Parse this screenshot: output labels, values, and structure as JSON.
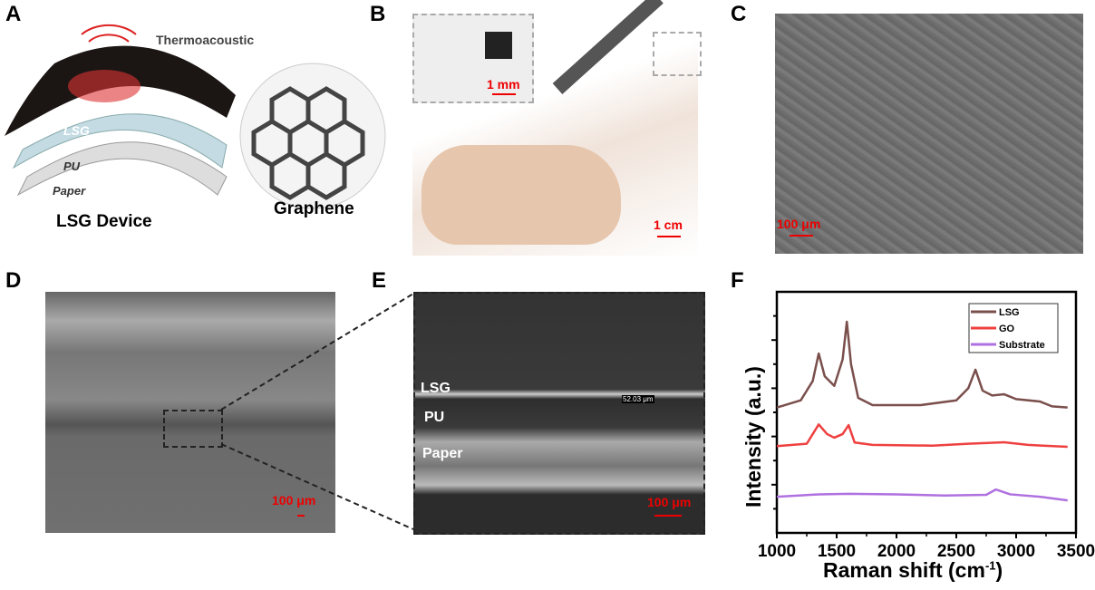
{
  "panels": {
    "A": {
      "label": "A",
      "title": "Thermoacoustic",
      "layers": [
        "LSG",
        "PU",
        "Paper"
      ],
      "device_caption": "LSG Device",
      "graphene_caption": "Graphene"
    },
    "B": {
      "label": "B",
      "inset_scale": "1 mm",
      "scale": "1 cm"
    },
    "C": {
      "label": "C",
      "scale": "100 μm"
    },
    "D": {
      "label": "D",
      "scale": "100 μm"
    },
    "E": {
      "label": "E",
      "layers": [
        "LSG",
        "PU",
        "Paper"
      ],
      "measurement": "52.03 μm",
      "scale": "100 μm"
    },
    "F": {
      "label": "F"
    }
  },
  "colors": {
    "scale_bar": "#e00000",
    "LSG": "#7a4f4c",
    "GO": "#ef4040",
    "Substrate": "#b071e0"
  },
  "chart_data": {
    "type": "line",
    "xlabel": "Raman shift (cm-1)",
    "xlabel_main": "Raman shift (cm",
    "xlabel_sup": "-1",
    "xlabel_end": ")",
    "ylabel": "Intensity (a.u.)",
    "xlim": [
      1000,
      3500
    ],
    "ylim": [
      0,
      10
    ],
    "xticks": [
      "1000",
      "1500",
      "2000",
      "2500",
      "3000",
      "3500"
    ],
    "grid": false,
    "legend": "top-right",
    "series": [
      {
        "name": "LSG",
        "points": [
          [
            1000,
            5.2
          ],
          [
            1200,
            5.5
          ],
          [
            1300,
            6.3
          ],
          [
            1350,
            7.44
          ],
          [
            1400,
            6.5
          ],
          [
            1480,
            6.1
          ],
          [
            1550,
            7.2
          ],
          [
            1585,
            8.76
          ],
          [
            1620,
            7.0
          ],
          [
            1680,
            5.6
          ],
          [
            1800,
            5.3
          ],
          [
            2200,
            5.3
          ],
          [
            2500,
            5.5
          ],
          [
            2600,
            6.0
          ],
          [
            2660,
            6.77
          ],
          [
            2720,
            5.9
          ],
          [
            2800,
            5.7
          ],
          [
            2900,
            5.75
          ],
          [
            3000,
            5.55
          ],
          [
            3200,
            5.45
          ],
          [
            3300,
            5.25
          ],
          [
            3430,
            5.2
          ]
        ]
      },
      {
        "name": "GO",
        "points": [
          [
            1000,
            3.6
          ],
          [
            1250,
            3.7
          ],
          [
            1350,
            4.5
          ],
          [
            1420,
            4.1
          ],
          [
            1480,
            3.95
          ],
          [
            1550,
            4.1
          ],
          [
            1600,
            4.47
          ],
          [
            1650,
            3.75
          ],
          [
            1800,
            3.65
          ],
          [
            2300,
            3.62
          ],
          [
            2600,
            3.7
          ],
          [
            2900,
            3.76
          ],
          [
            3100,
            3.65
          ],
          [
            3430,
            3.57
          ]
        ]
      },
      {
        "name": "Substrate",
        "points": [
          [
            1000,
            1.5
          ],
          [
            1350,
            1.6
          ],
          [
            1600,
            1.62
          ],
          [
            2000,
            1.6
          ],
          [
            2400,
            1.55
          ],
          [
            2750,
            1.58
          ],
          [
            2830,
            1.8
          ],
          [
            2950,
            1.6
          ],
          [
            3200,
            1.5
          ],
          [
            3430,
            1.35
          ]
        ]
      }
    ]
  }
}
